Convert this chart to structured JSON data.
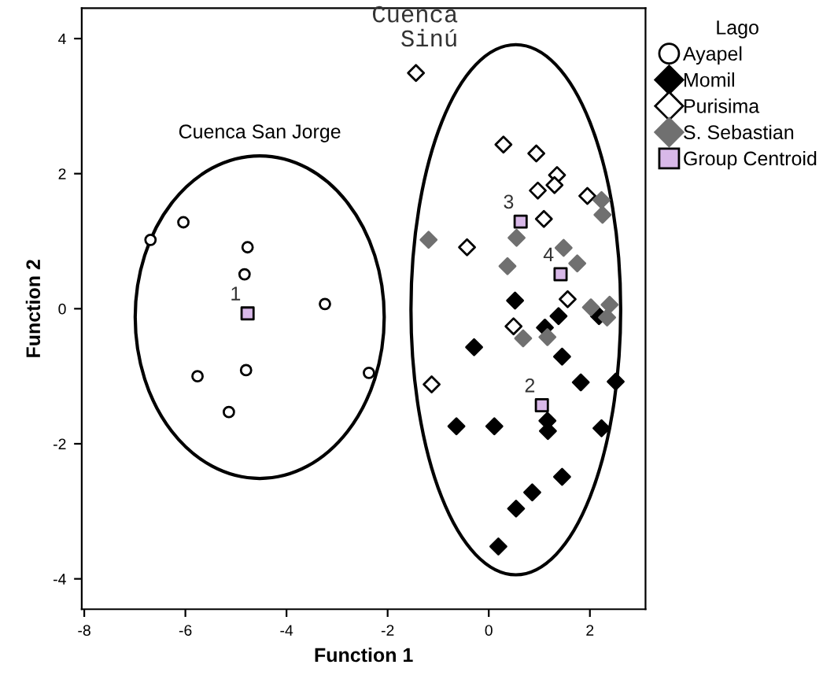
{
  "chart_data": {
    "type": "scatter",
    "xlabel": "Function 1",
    "ylabel": "Function 2",
    "legend_title": "Lago",
    "legend": "right",
    "grid": false,
    "xlim": [
      -8.05,
      3.1
    ],
    "ylim": [
      -4.45,
      4.45
    ],
    "xticks": [
      -8,
      -6,
      -4,
      -2,
      0,
      2
    ],
    "yticks": [
      -4,
      -2,
      0,
      2,
      4
    ],
    "series": [
      {
        "name": "Ayapel",
        "color": "#ffffff",
        "marker": "circle",
        "x": [
          -6.69,
          -6.04,
          -4.77,
          -4.83,
          -3.24,
          -2.37,
          -4.8,
          -5.76,
          -5.14
        ],
        "values": [
          1.02,
          1.28,
          0.91,
          0.51,
          0.07,
          -0.95,
          -0.91,
          -1.0,
          -1.53
        ]
      },
      {
        "name": "Momil",
        "color": "#000000",
        "marker": "diamond",
        "x": [
          0.52,
          1.38,
          1.11,
          2.18,
          -0.29,
          1.45,
          1.82,
          2.51,
          -0.64,
          0.11,
          1.16,
          1.17,
          2.23,
          1.45,
          0.86,
          0.54,
          0.19
        ],
        "values": [
          0.12,
          -0.11,
          -0.28,
          -0.11,
          -0.57,
          -0.71,
          -1.09,
          -1.08,
          -1.74,
          -1.74,
          -1.66,
          -1.81,
          -1.77,
          -2.49,
          -2.72,
          -2.96,
          -3.52
        ]
      },
      {
        "name": "Purisima",
        "color": "#ffffff",
        "marker": "diamond",
        "x": [
          -1.44,
          0.29,
          0.94,
          1.35,
          1.3,
          0.97,
          1.95,
          1.09,
          -0.43,
          1.56,
          0.49,
          -1.13
        ],
        "values": [
          3.49,
          2.43,
          2.3,
          1.98,
          1.83,
          1.75,
          1.67,
          1.33,
          0.91,
          0.14,
          -0.26,
          -1.12
        ]
      },
      {
        "name": "S. Sebastian",
        "color": "#707070",
        "marker": "diamond",
        "x": [
          2.23,
          2.25,
          -1.19,
          0.55,
          0.37,
          1.48,
          1.75,
          2.39,
          2.02,
          2.34,
          0.68,
          1.16
        ],
        "values": [
          1.61,
          1.39,
          1.02,
          1.05,
          0.63,
          0.9,
          0.67,
          0.06,
          0.02,
          -0.13,
          -0.44,
          -0.42
        ]
      },
      {
        "name": "Group Centroid",
        "color": "#d8b8e8",
        "marker": "square",
        "x": [
          -4.77,
          1.05,
          0.63,
          1.42
        ],
        "values": [
          -0.07,
          -1.43,
          1.29,
          0.51
        ]
      }
    ],
    "annotations": [
      {
        "text": "1",
        "x": -4.77,
        "y": -0.07
      },
      {
        "text": "2",
        "x": 1.05,
        "y": -1.43
      },
      {
        "text": "3",
        "x": 0.63,
        "y": 1.29
      },
      {
        "text": "4",
        "x": 1.42,
        "y": 0.51
      },
      "Cuenca San Jorge",
      "Cuenca\nSinú"
    ]
  }
}
